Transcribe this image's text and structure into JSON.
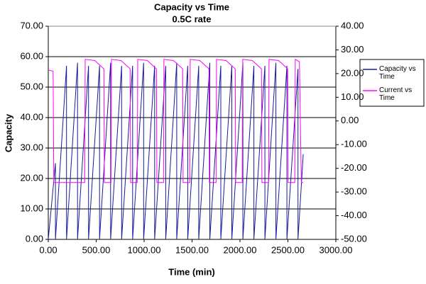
{
  "chart_data": {
    "type": "line",
    "title": "Capacity vs Time",
    "subtitle": "0.5C rate",
    "x_label": "Time (min)",
    "y_label": "Capacity",
    "xlim": [
      0,
      3000
    ],
    "xticks": [
      {
        "value": 0,
        "label": "0.00"
      },
      {
        "value": 500,
        "label": "500.00"
      },
      {
        "value": 1000,
        "label": "1000.00"
      },
      {
        "value": 1500,
        "label": "1500.00"
      },
      {
        "value": 2000,
        "label": "2000.00"
      },
      {
        "value": 2500,
        "label": "2500.00"
      },
      {
        "value": 3000,
        "label": "3000.00"
      }
    ],
    "ylim": [
      0,
      70
    ],
    "yticks": [
      {
        "value": 0,
        "label": "0.00"
      },
      {
        "value": 10,
        "label": "10.00"
      },
      {
        "value": 20,
        "label": "20.00"
      },
      {
        "value": 30,
        "label": "30.00"
      },
      {
        "value": 40,
        "label": "40.00"
      },
      {
        "value": 50,
        "label": "50.00"
      },
      {
        "value": 60,
        "label": "60.00"
      },
      {
        "value": 70,
        "label": "70.00"
      }
    ],
    "y2lim": [
      -50,
      40
    ],
    "y2ticks": [
      {
        "value": -50,
        "label": "-50.00"
      },
      {
        "value": -40,
        "label": "-40.00"
      },
      {
        "value": -30,
        "label": "-30.00"
      },
      {
        "value": -20,
        "label": "-20.00"
      },
      {
        "value": -10,
        "label": "-10.00"
      },
      {
        "value": 0,
        "label": "0.00"
      },
      {
        "value": 10,
        "label": "10.00"
      },
      {
        "value": 20,
        "label": "20.00"
      },
      {
        "value": 30,
        "label": "30.00"
      },
      {
        "value": 40,
        "label": "40.00"
      }
    ],
    "grid": true,
    "legend": "right",
    "series": [
      {
        "name": "Capacity vs Time",
        "color": "#1a1a9c",
        "x": [
          0,
          75,
          75,
          190,
          190,
          305,
          305,
          420,
          420,
          535,
          535,
          650,
          650,
          765,
          765,
          880,
          880,
          995,
          995,
          1110,
          1110,
          1225,
          1225,
          1340,
          1340,
          1455,
          1455,
          1570,
          1570,
          1685,
          1685,
          1800,
          1800,
          1915,
          1915,
          2030,
          2030,
          2145,
          2145,
          2260,
          2260,
          2375,
          2375,
          2490,
          2490,
          2605,
          2605,
          2660
        ],
        "values": [
          0,
          25,
          0,
          57,
          0,
          58,
          0,
          57,
          0,
          57,
          0,
          58,
          0,
          57,
          0,
          57,
          0,
          58,
          0,
          57,
          0,
          57,
          0,
          58,
          0,
          57,
          0,
          57,
          0,
          58,
          0,
          57,
          0,
          57,
          0,
          58,
          0,
          57,
          0,
          57,
          0,
          58,
          0,
          57,
          0,
          56,
          0,
          28
        ]
      },
      {
        "name": "Current vs Time",
        "color": "#ff00ff",
        "axis": "y2",
        "x": [
          0,
          50,
          58,
          380,
          385,
          485,
          580,
          585,
          654,
          659,
          759,
          854,
          859,
          928,
          933,
          1033,
          1128,
          1133,
          1202,
          1207,
          1307,
          1402,
          1407,
          1476,
          1481,
          1581,
          1676,
          1681,
          1750,
          1755,
          1855,
          1950,
          1955,
          2024,
          2029,
          2129,
          2224,
          2229,
          2298,
          2303,
          2403,
          2498,
          2503,
          2572,
          2577,
          2620,
          2640,
          2660
        ],
        "values": [
          21.5,
          21,
          -26,
          -26,
          26,
          25.5,
          22,
          -26,
          -26,
          26,
          25.5,
          22,
          -26,
          -26,
          26,
          25.5,
          22,
          -26,
          -26,
          26,
          25.5,
          22,
          -26,
          -26,
          26,
          25.5,
          22,
          -26,
          -26,
          26,
          25.5,
          22,
          -26,
          -26,
          26,
          25.5,
          22,
          -26,
          -26,
          26,
          25.5,
          22,
          -26,
          -26,
          26,
          25,
          -26,
          -26
        ]
      }
    ]
  }
}
